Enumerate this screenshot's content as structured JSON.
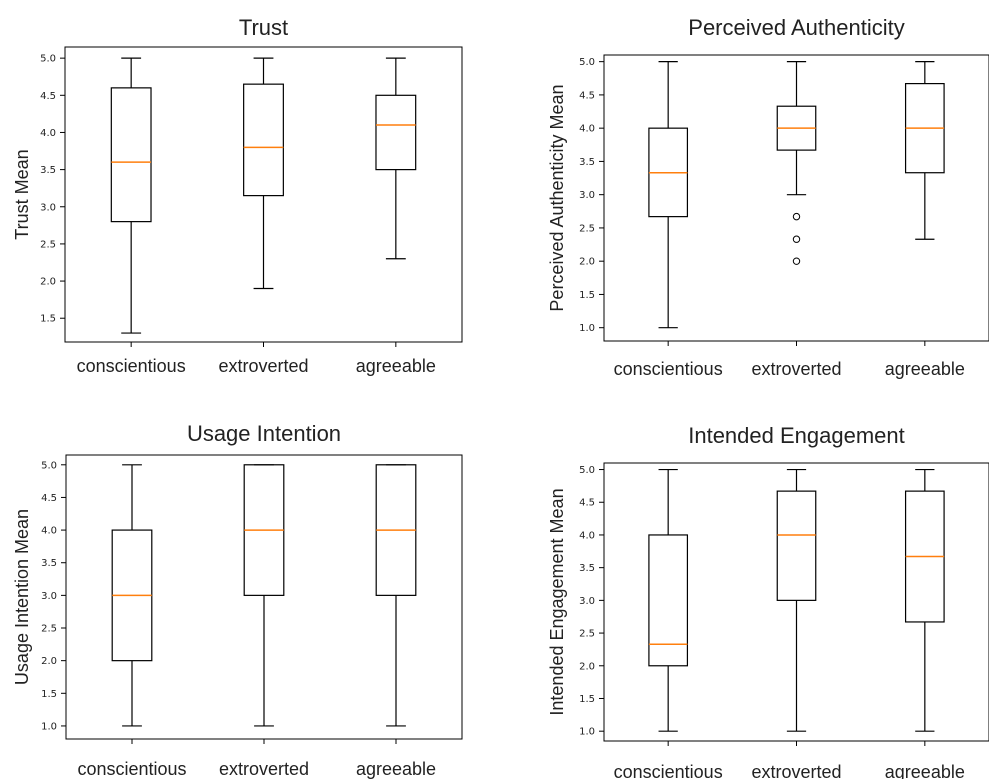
{
  "chart_data": [
    {
      "type": "box",
      "title": "Trust",
      "ylabel": "Trust Mean",
      "categories": [
        "conscientious",
        "extroverted",
        "agreeable"
      ],
      "ylim": [
        1.18,
        5.15
      ],
      "yticks": [
        1.5,
        2.0,
        2.5,
        3.0,
        3.5,
        4.0,
        4.5,
        5.0
      ],
      "boxes": [
        {
          "whislo": 1.3,
          "q1": 2.8,
          "med": 3.6,
          "q3": 4.6,
          "whishi": 5.0,
          "fliers": []
        },
        {
          "whislo": 1.9,
          "q1": 3.15,
          "med": 3.8,
          "q3": 4.65,
          "whishi": 5.0,
          "fliers": []
        },
        {
          "whislo": 2.3,
          "q1": 3.5,
          "med": 4.1,
          "q3": 4.5,
          "whishi": 5.0,
          "fliers": []
        }
      ]
    },
    {
      "type": "box",
      "title": "Perceived Authenticity",
      "ylabel": "Perceived Authenticity Mean",
      "categories": [
        "conscientious",
        "extroverted",
        "agreeable"
      ],
      "ylim": [
        0.8,
        5.1
      ],
      "yticks": [
        1.0,
        1.5,
        2.0,
        2.5,
        3.0,
        3.5,
        4.0,
        4.5,
        5.0
      ],
      "boxes": [
        {
          "whislo": 1.0,
          "q1": 2.67,
          "med": 3.33,
          "q3": 4.0,
          "whishi": 5.0,
          "fliers": []
        },
        {
          "whislo": 3.0,
          "q1": 3.67,
          "med": 4.0,
          "q3": 4.33,
          "whishi": 5.0,
          "fliers": [
            2.0,
            2.33,
            2.67
          ]
        },
        {
          "whislo": 2.33,
          "q1": 3.33,
          "med": 4.0,
          "q3": 4.67,
          "whishi": 5.0,
          "fliers": []
        }
      ]
    },
    {
      "type": "box",
      "title": "Usage Intention",
      "ylabel": "Usage Intention Mean",
      "categories": [
        "conscientious",
        "extroverted",
        "agreeable"
      ],
      "ylim": [
        0.8,
        5.15
      ],
      "yticks": [
        1.0,
        1.5,
        2.0,
        2.5,
        3.0,
        3.5,
        4.0,
        4.5,
        5.0
      ],
      "boxes": [
        {
          "whislo": 1.0,
          "q1": 2.0,
          "med": 3.0,
          "q3": 4.0,
          "whishi": 5.0,
          "fliers": []
        },
        {
          "whislo": 1.0,
          "q1": 3.0,
          "med": 4.0,
          "q3": 5.0,
          "whishi": 5.0,
          "fliers": []
        },
        {
          "whislo": 1.0,
          "q1": 3.0,
          "med": 4.0,
          "q3": 5.0,
          "whishi": 5.0,
          "fliers": []
        }
      ]
    },
    {
      "type": "box",
      "title": "Intended Engagement",
      "ylabel": "Intended Engagement Mean",
      "categories": [
        "conscientious",
        "extroverted",
        "agreeable"
      ],
      "ylim": [
        0.85,
        5.1
      ],
      "yticks": [
        1.0,
        1.5,
        2.0,
        2.5,
        3.0,
        3.5,
        4.0,
        4.5,
        5.0
      ],
      "boxes": [
        {
          "whislo": 1.0,
          "q1": 2.0,
          "med": 2.33,
          "q3": 4.0,
          "whishi": 5.0,
          "fliers": []
        },
        {
          "whislo": 1.0,
          "q1": 3.0,
          "med": 4.0,
          "q3": 4.67,
          "whishi": 5.0,
          "fliers": []
        },
        {
          "whislo": 1.0,
          "q1": 2.67,
          "med": 3.67,
          "q3": 4.67,
          "whishi": 5.0,
          "fliers": []
        }
      ]
    }
  ],
  "colors": {
    "median": "#ff7f0e",
    "line": "#000000",
    "text": "#222222"
  }
}
